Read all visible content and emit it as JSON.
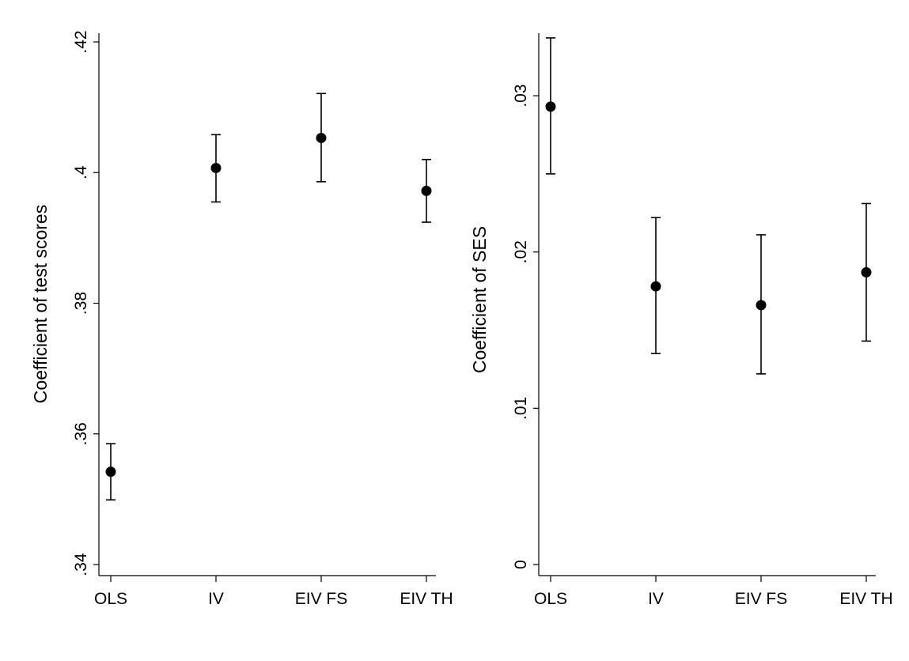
{
  "chart_data": [
    {
      "type": "scatter",
      "error_bars": true,
      "categories": [
        "OLS",
        "IV",
        "EIV FS",
        "EIV TH"
      ],
      "series": [
        {
          "values": [
            0.3542,
            0.4007,
            0.4053,
            0.3972
          ],
          "lower": [
            0.3499,
            0.3955,
            0.3986,
            0.3924
          ],
          "upper": [
            0.3585,
            0.4058,
            0.4121,
            0.402
          ]
        }
      ],
      "xlabel": "",
      "ylabel": "Coefficient of test scores",
      "ylim": [
        0.34,
        0.42
      ],
      "yticks": [
        0.34,
        0.36,
        0.38,
        0.4,
        0.42
      ],
      "ytick_labels": [
        ".34",
        ".36",
        ".38",
        ".4",
        ".42"
      ],
      "grid": false,
      "legend": "none"
    },
    {
      "type": "scatter",
      "error_bars": true,
      "categories": [
        "OLS",
        "IV",
        "EIV FS",
        "EIV TH"
      ],
      "series": [
        {
          "values": [
            0.0293,
            0.0178,
            0.0166,
            0.0187
          ],
          "lower": [
            0.025,
            0.0135,
            0.0122,
            0.0143
          ],
          "upper": [
            0.0337,
            0.0222,
            0.0211,
            0.0231
          ]
        }
      ],
      "xlabel": "",
      "ylabel": "Coefficient of SES",
      "ylim": [
        0,
        0.034
      ],
      "yticks": [
        0,
        0.01,
        0.02,
        0.03
      ],
      "ytick_labels": [
        "0",
        ".01",
        ".02",
        ".03"
      ],
      "grid": false,
      "legend": "none"
    }
  ]
}
